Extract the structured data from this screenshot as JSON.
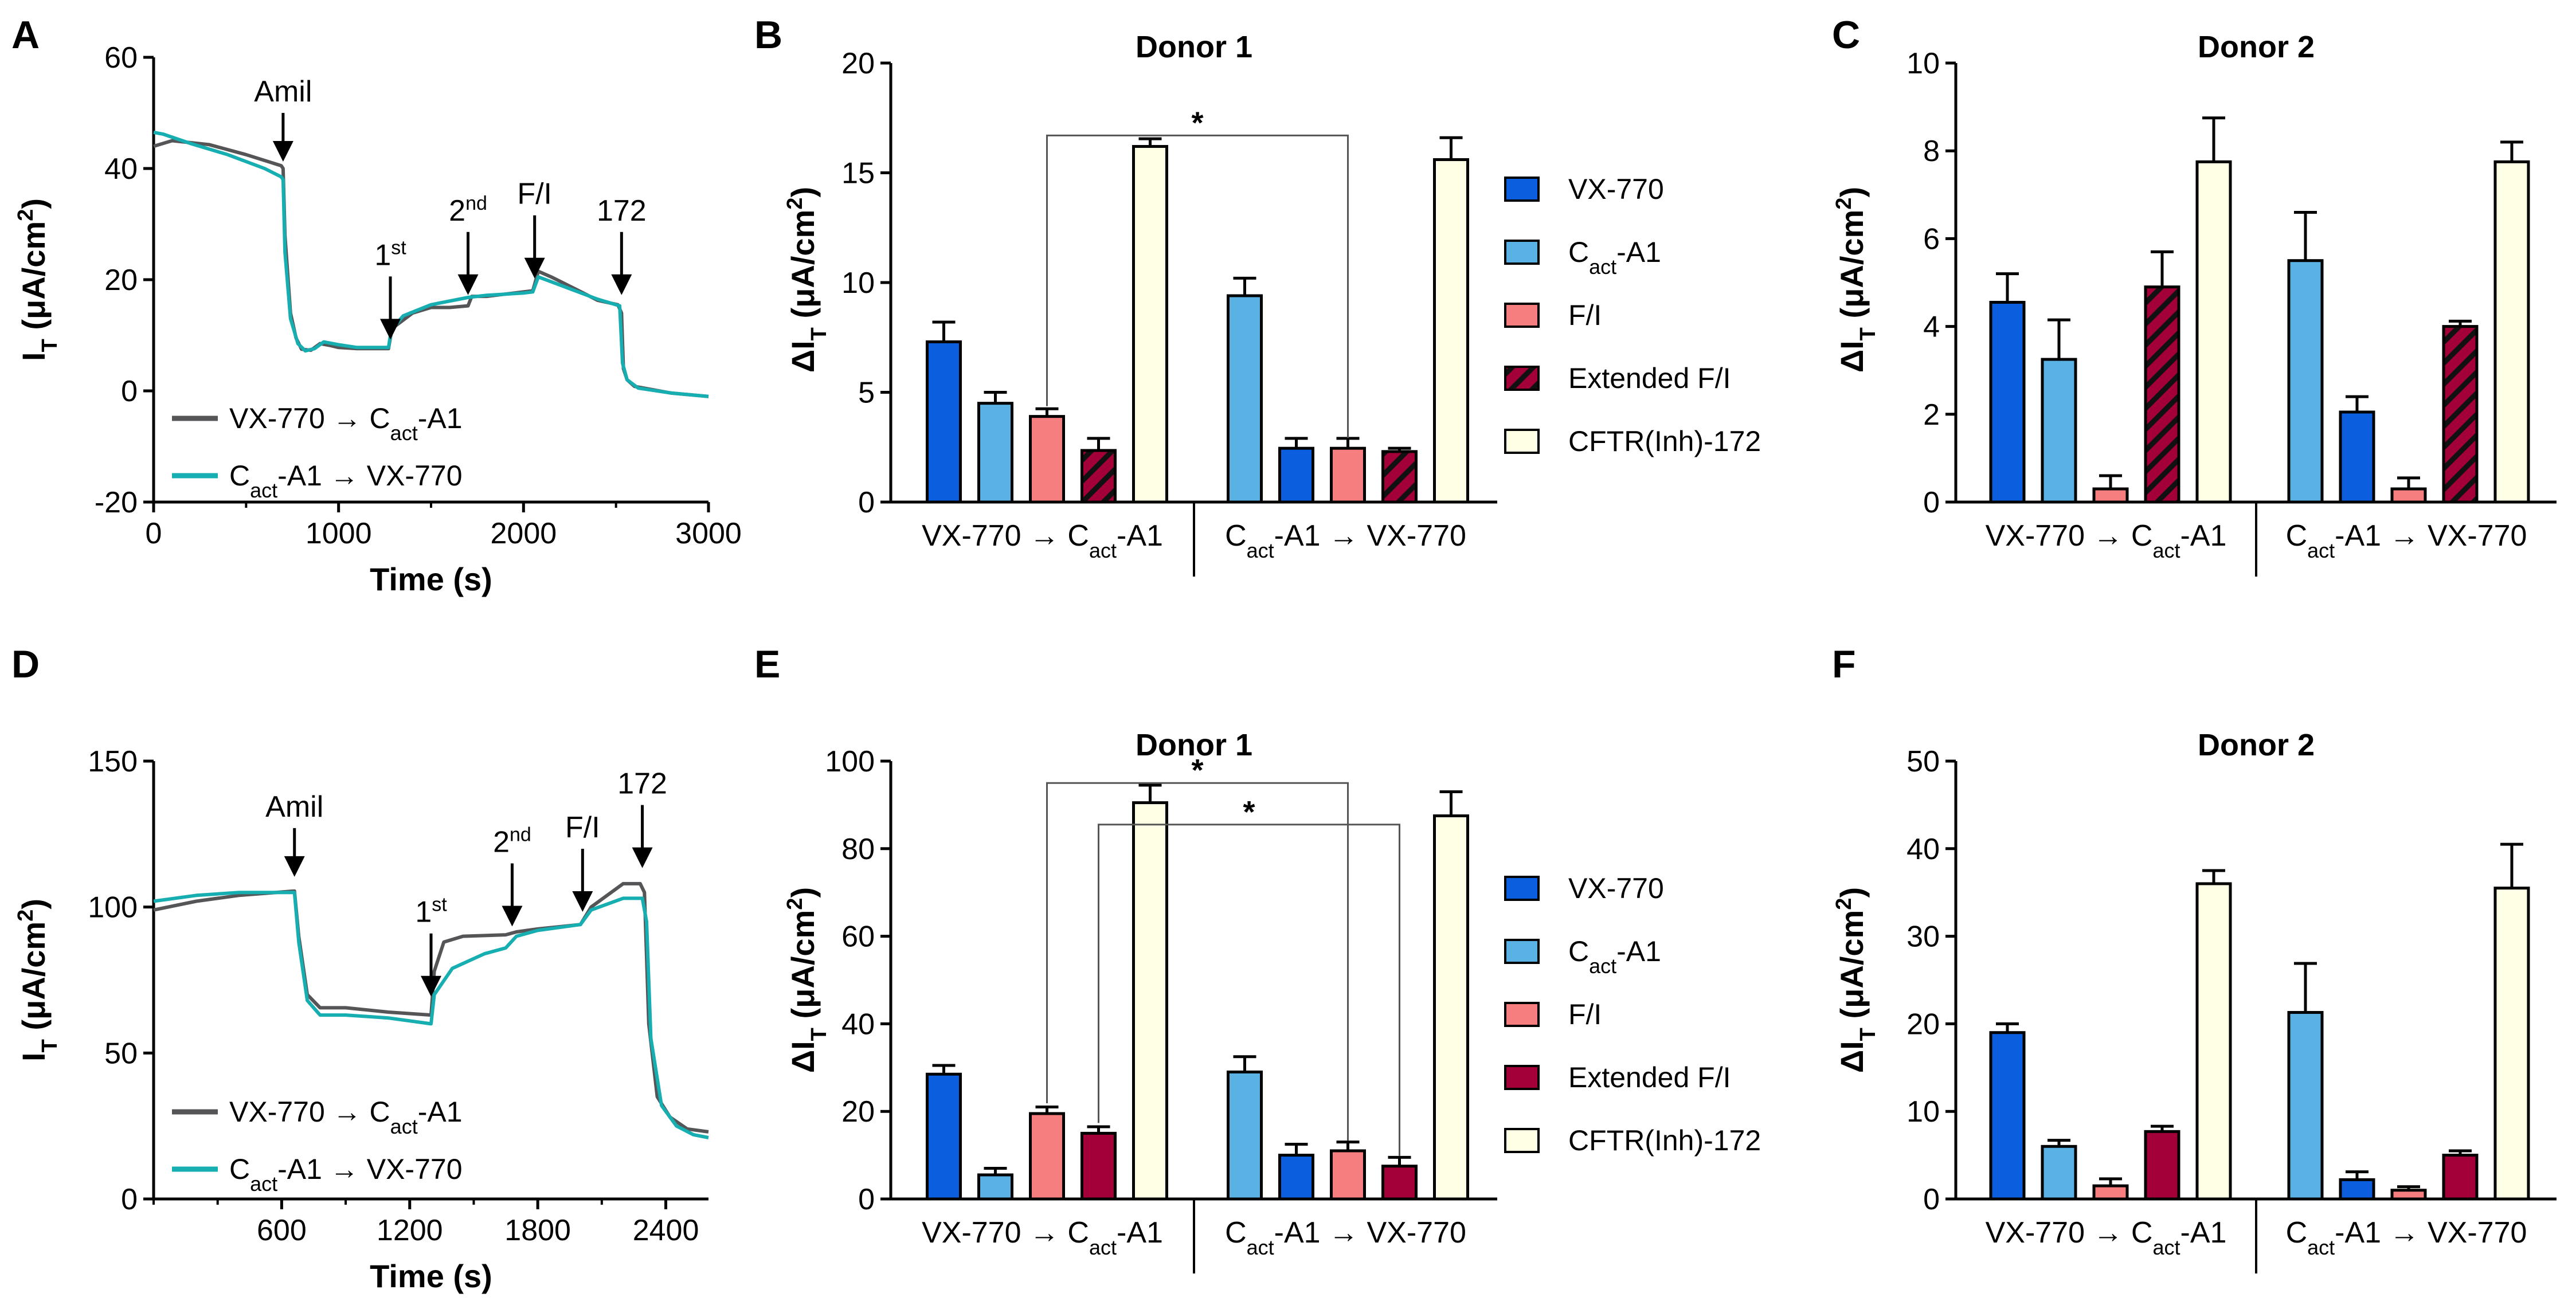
{
  "colors": {
    "vx770": "#0b5fde",
    "cact": "#5ab1e4",
    "fi": "#f77e7e",
    "ext": "#a3003a",
    "inh": "#ffffe6",
    "trace_vx": "#555558",
    "trace_cact": "#17aeb1"
  },
  "legend": {
    "items": [
      {
        "key": "vx770",
        "label": "VX-770"
      },
      {
        "key": "cact",
        "label": "C",
        "sub": "act",
        "rest": "-A1"
      },
      {
        "key": "fi",
        "label": "F/I"
      },
      {
        "key": "ext",
        "label": "Extended F/I"
      },
      {
        "key": "inh",
        "label": "CFTR(Inh)-172"
      }
    ]
  },
  "groups": {
    "g1": {
      "pre": "VX-770 → C",
      "sub": "act",
      "post": "-A1"
    },
    "g2": {
      "pre": "C",
      "sub": "act",
      "post": "-A1 → VX-770"
    }
  },
  "trace_legend": [
    {
      "key": "trace_vx",
      "pre": "VX-770 → C",
      "sub": "act",
      "post": "-A1"
    },
    {
      "key": "trace_cact",
      "pre": "C",
      "sub": "act",
      "post": "-A1 → VX-770"
    }
  ],
  "ylabel_trace": {
    "main": "I",
    "sub": "T",
    "rest": " (μA/cm",
    "sup": "2",
    "end": ")"
  },
  "ylabel_bar": {
    "main": "ΔI",
    "sub": "T",
    "rest": " (μA/cm",
    "sup": "2",
    "end": ")"
  },
  "xlabel_trace": "Time (s)",
  "chart_data": [
    {
      "panel": "A",
      "type": "line",
      "xlabel": "Time (s)",
      "ylabel": "I_T (μA/cm2)",
      "xlim": [
        0,
        3000
      ],
      "ylim": [
        -20,
        60
      ],
      "xticks": [
        "0",
        "1000",
        "2000",
        "3000"
      ],
      "yticks": [
        "-20",
        "0",
        "20",
        "40",
        "60"
      ],
      "annotations": [
        {
          "text": "Amil",
          "x": 700,
          "y": 40
        },
        {
          "text": "1",
          "sup": "st",
          "x": 1280,
          "y": 8
        },
        {
          "text": "2",
          "sup": "nd",
          "x": 1700,
          "y": 16
        },
        {
          "text": "F/I",
          "x": 2060,
          "y": 19
        },
        {
          "text": "172",
          "x": 2530,
          "y": 16
        }
      ],
      "series": [
        {
          "name": "VX-770 → Cact-A1",
          "color_key": "trace_vx",
          "points": [
            [
              0,
              44
            ],
            [
              100,
              45
            ],
            [
              300,
              44.3
            ],
            [
              500,
              42.5
            ],
            [
              690,
              40.5
            ],
            [
              700,
              40
            ],
            [
              710,
              28
            ],
            [
              740,
              14
            ],
            [
              770,
              9.5
            ],
            [
              800,
              7.5
            ],
            [
              850,
              7.3
            ],
            [
              900,
              8.5
            ],
            [
              950,
              8.2
            ],
            [
              1000,
              7.8
            ],
            [
              1100,
              7.6
            ],
            [
              1270,
              7.6
            ],
            [
              1285,
              10.5
            ],
            [
              1300,
              11.5
            ],
            [
              1400,
              14
            ],
            [
              1500,
              15
            ],
            [
              1600,
              15
            ],
            [
              1700,
              15.3
            ],
            [
              1720,
              17
            ],
            [
              1800,
              17
            ],
            [
              1900,
              17.4
            ],
            [
              2050,
              18
            ],
            [
              2080,
              21.5
            ],
            [
              2150,
              20.5
            ],
            [
              2300,
              18
            ],
            [
              2400,
              16.3
            ],
            [
              2510,
              15.5
            ],
            [
              2530,
              14
            ],
            [
              2540,
              4
            ],
            [
              2560,
              2
            ],
            [
              2600,
              0.8
            ],
            [
              2800,
              -0.4
            ],
            [
              3000,
              -1
            ]
          ]
        },
        {
          "name": "Cact-A1 → VX-770",
          "color_key": "trace_cact",
          "points": [
            [
              0,
              46.5
            ],
            [
              50,
              46.2
            ],
            [
              200,
              44.5
            ],
            [
              400,
              42.5
            ],
            [
              600,
              40
            ],
            [
              690,
              38.5
            ],
            [
              700,
              38
            ],
            [
              710,
              25
            ],
            [
              740,
              13
            ],
            [
              780,
              8.5
            ],
            [
              820,
              7.2
            ],
            [
              870,
              7.6
            ],
            [
              920,
              8.8
            ],
            [
              1000,
              8.3
            ],
            [
              1100,
              7.8
            ],
            [
              1270,
              7.8
            ],
            [
              1285,
              11
            ],
            [
              1350,
              13.5
            ],
            [
              1500,
              15.5
            ],
            [
              1700,
              16.8
            ],
            [
              1800,
              17.2
            ],
            [
              2000,
              17.6
            ],
            [
              2050,
              17.8
            ],
            [
              2080,
              20.5
            ],
            [
              2200,
              19
            ],
            [
              2400,
              16.5
            ],
            [
              2520,
              15.3
            ],
            [
              2535,
              5
            ],
            [
              2560,
              2
            ],
            [
              2620,
              0.5
            ],
            [
              2800,
              -0.4
            ],
            [
              3000,
              -1
            ]
          ]
        }
      ]
    },
    {
      "panel": "B",
      "type": "bar",
      "title": "Donor 1",
      "ylabel": "ΔI_T (μA/cm2)",
      "ylim": [
        0,
        20
      ],
      "yticks": [
        "0",
        "5",
        "10",
        "15",
        "20"
      ],
      "groups": [
        "VX-770 → Cact-A1",
        "Cact-A1 → VX-770"
      ],
      "bars": [
        [
          {
            "s": "vx770",
            "v": 7.3,
            "e": 0.9
          },
          {
            "s": "cact",
            "v": 4.5,
            "e": 0.5
          },
          {
            "s": "fi",
            "v": 3.9,
            "e": 0.35
          },
          {
            "s": "ext",
            "v": 2.35,
            "e": 0.55,
            "hatch": true
          },
          {
            "s": "inh",
            "v": 16.2,
            "e": 0.35
          }
        ],
        [
          {
            "s": "cact",
            "v": 9.4,
            "e": 0.8
          },
          {
            "s": "vx770",
            "v": 2.45,
            "e": 0.45
          },
          {
            "s": "fi",
            "v": 2.45,
            "e": 0.45
          },
          {
            "s": "ext",
            "v": 2.3,
            "e": 0.15,
            "hatch": true
          },
          {
            "s": "inh",
            "v": 15.6,
            "e": 1.0
          }
        ]
      ],
      "significance": [
        {
          "from": [
            0,
            2
          ],
          "to": [
            1,
            2
          ],
          "y": 16.7,
          "label": "*"
        }
      ]
    },
    {
      "panel": "C",
      "type": "bar",
      "title": "Donor 2",
      "ylabel": "ΔI_T (μA/cm2)",
      "ylim": [
        0,
        10
      ],
      "yticks": [
        "0",
        "2",
        "4",
        "6",
        "8",
        "10"
      ],
      "groups": [
        "VX-770 → Cact-A1",
        "Cact-A1 → VX-770"
      ],
      "bars": [
        [
          {
            "s": "vx770",
            "v": 4.55,
            "e": 0.65
          },
          {
            "s": "cact",
            "v": 3.25,
            "e": 0.9
          },
          {
            "s": "fi",
            "v": 0.3,
            "e": 0.3
          },
          {
            "s": "ext",
            "v": 4.9,
            "e": 0.8,
            "hatch": true
          },
          {
            "s": "inh",
            "v": 7.75,
            "e": 1.0
          }
        ],
        [
          {
            "s": "cact",
            "v": 5.5,
            "e": 1.1
          },
          {
            "s": "vx770",
            "v": 2.05,
            "e": 0.35
          },
          {
            "s": "fi",
            "v": 0.3,
            "e": 0.25
          },
          {
            "s": "ext",
            "v": 4.0,
            "e": 0.12,
            "hatch": true
          },
          {
            "s": "inh",
            "v": 7.75,
            "e": 0.45
          }
        ]
      ]
    },
    {
      "panel": "D",
      "type": "line",
      "xlabel": "Time (s)",
      "ylabel": "I_T (μA/cm2)",
      "xlim": [
        0,
        2600
      ],
      "ylim": [
        0,
        150
      ],
      "xticks": [
        "600",
        "1200",
        "1800",
        "2400"
      ],
      "yticks": [
        "0",
        "50",
        "100",
        "150"
      ],
      "annotations": [
        {
          "text": "Amil",
          "x": 660,
          "y": 108
        },
        {
          "text": "1",
          "sup": "st",
          "x": 1300,
          "y": 67
        },
        {
          "text": "2",
          "sup": "nd",
          "x": 1680,
          "y": 91
        },
        {
          "text": "F/I",
          "x": 2010,
          "y": 96
        },
        {
          "text": "172",
          "x": 2290,
          "y": 111
        }
      ],
      "series": [
        {
          "name": "VX-770 → Cact-A1",
          "color_key": "trace_vx",
          "points": [
            [
              0,
              99
            ],
            [
              200,
              102
            ],
            [
              400,
              104
            ],
            [
              660,
              105.5
            ],
            [
              680,
              90
            ],
            [
              720,
              70
            ],
            [
              780,
              65.5
            ],
            [
              900,
              65.5
            ],
            [
              1100,
              64
            ],
            [
              1300,
              63
            ],
            [
              1315,
              78
            ],
            [
              1360,
              88
            ],
            [
              1450,
              90
            ],
            [
              1650,
              90.5
            ],
            [
              1700,
              91.5
            ],
            [
              1800,
              92.5
            ],
            [
              2000,
              94
            ],
            [
              2050,
              100
            ],
            [
              2200,
              108
            ],
            [
              2280,
              108
            ],
            [
              2300,
              105
            ],
            [
              2320,
              60
            ],
            [
              2360,
              35
            ],
            [
              2420,
              28
            ],
            [
              2500,
              24
            ],
            [
              2600,
              23
            ]
          ]
        },
        {
          "name": "Cact-A1 → VX-770",
          "color_key": "trace_cact",
          "points": [
            [
              0,
              102
            ],
            [
              200,
              104
            ],
            [
              400,
              105
            ],
            [
              660,
              105
            ],
            [
              680,
              88
            ],
            [
              720,
              68
            ],
            [
              780,
              63
            ],
            [
              900,
              63
            ],
            [
              1100,
              62
            ],
            [
              1300,
              60
            ],
            [
              1315,
              70
            ],
            [
              1400,
              79
            ],
            [
              1550,
              84
            ],
            [
              1650,
              86
            ],
            [
              1700,
              90
            ],
            [
              1800,
              92
            ],
            [
              2000,
              94
            ],
            [
              2050,
              99
            ],
            [
              2200,
              103
            ],
            [
              2290,
              103
            ],
            [
              2310,
              95
            ],
            [
              2330,
              55
            ],
            [
              2380,
              32
            ],
            [
              2450,
              25
            ],
            [
              2530,
              22
            ],
            [
              2600,
              21
            ]
          ]
        }
      ]
    },
    {
      "panel": "E",
      "type": "bar",
      "title": "Donor 1",
      "ylabel": "ΔI_T (μA/cm2)",
      "ylim": [
        0,
        100
      ],
      "yticks": [
        "0",
        "20",
        "40",
        "60",
        "80",
        "100"
      ],
      "groups": [
        "VX-770 → Cact-A1",
        "Cact-A1 → VX-770"
      ],
      "bars": [
        [
          {
            "s": "vx770",
            "v": 28.5,
            "e": 2
          },
          {
            "s": "cact",
            "v": 5.5,
            "e": 1.5
          },
          {
            "s": "fi",
            "v": 19.5,
            "e": 1.5
          },
          {
            "s": "ext",
            "v": 15,
            "e": 1.5
          },
          {
            "s": "inh",
            "v": 90.5,
            "e": 4
          }
        ],
        [
          {
            "s": "cact",
            "v": 29,
            "e": 3.5
          },
          {
            "s": "vx770",
            "v": 10,
            "e": 2.5
          },
          {
            "s": "fi",
            "v": 11,
            "e": 2
          },
          {
            "s": "ext",
            "v": 7.5,
            "e": 2
          },
          {
            "s": "inh",
            "v": 87.5,
            "e": 5.5
          }
        ]
      ],
      "significance": [
        {
          "from": [
            0,
            2
          ],
          "to": [
            1,
            2
          ],
          "y": 95,
          "label": "*"
        },
        {
          "from": [
            0,
            3
          ],
          "to": [
            1,
            3
          ],
          "y": 85.5,
          "label": "*"
        }
      ]
    },
    {
      "panel": "F",
      "type": "bar",
      "title": "Donor 2",
      "ylabel": "ΔI_T (μA/cm2)",
      "ylim": [
        0,
        50
      ],
      "yticks": [
        "0",
        "10",
        "20",
        "30",
        "40",
        "50"
      ],
      "groups": [
        "VX-770 → Cact-A1",
        "Cact-A1 → VX-770"
      ],
      "bars": [
        [
          {
            "s": "vx770",
            "v": 19,
            "e": 1
          },
          {
            "s": "cact",
            "v": 6,
            "e": 0.7
          },
          {
            "s": "fi",
            "v": 1.5,
            "e": 0.8
          },
          {
            "s": "ext",
            "v": 7.7,
            "e": 0.6
          },
          {
            "s": "inh",
            "v": 36,
            "e": 1.5
          }
        ],
        [
          {
            "s": "cact",
            "v": 21.3,
            "e": 5.6
          },
          {
            "s": "vx770",
            "v": 2.2,
            "e": 0.9
          },
          {
            "s": "fi",
            "v": 1,
            "e": 0.4
          },
          {
            "s": "ext",
            "v": 5,
            "e": 0.5
          },
          {
            "s": "inh",
            "v": 35.5,
            "e": 5
          }
        ]
      ]
    }
  ]
}
